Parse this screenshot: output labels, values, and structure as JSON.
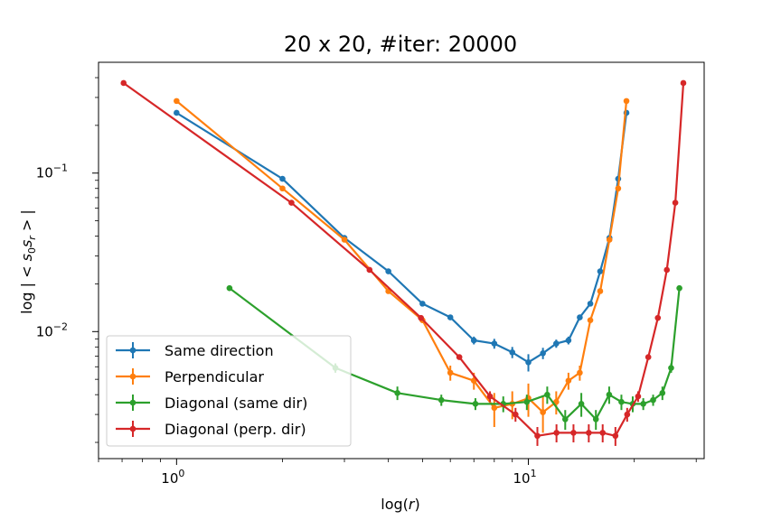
{
  "chart_data": {
    "type": "line",
    "title": "20 x 20, #iter: 20000",
    "xlabel": "log(r)",
    "ylabel": "log | < s0 sr > |",
    "xscale": "log",
    "yscale": "log",
    "xlim": [
      0.6,
      31.6
    ],
    "ylim": [
      0.00158,
      0.5
    ],
    "grid": false,
    "legend_position": "lower-left",
    "x_ticks": [
      {
        "value": 1,
        "label": "10",
        "exp": "0"
      },
      {
        "value": 10,
        "label": "10",
        "exp": "1"
      }
    ],
    "y_ticks": [
      {
        "value": 0.01,
        "label": "10",
        "exp": "−2"
      },
      {
        "value": 0.1,
        "label": "10",
        "exp": "−1"
      }
    ],
    "series": [
      {
        "name": "Same direction",
        "color": "#1f77b4",
        "x": [
          1,
          2,
          3,
          4,
          5,
          6,
          7,
          8,
          9,
          10,
          11,
          12,
          13,
          14,
          15,
          16,
          17,
          18,
          19
        ],
        "y": [
          0.24,
          0.092,
          0.039,
          0.024,
          0.015,
          0.0123,
          0.0088,
          0.0084,
          0.0074,
          0.0064,
          0.0073,
          0.0084,
          0.0088,
          0.0123,
          0.015,
          0.024,
          0.039,
          0.092,
          0.24
        ],
        "err": [
          0,
          0,
          0,
          0,
          0,
          0,
          0.0005,
          0.0006,
          0.0006,
          0.0008,
          0.0006,
          0.0005,
          0.0005,
          0,
          0,
          0,
          0,
          0,
          0
        ]
      },
      {
        "name": "Perpendicular",
        "color": "#ff7f0e",
        "x": [
          1,
          2,
          3,
          4,
          5,
          6,
          7,
          8,
          9,
          10,
          11,
          12,
          13,
          14,
          15,
          16,
          17,
          18,
          19
        ],
        "y": [
          0.285,
          0.08,
          0.038,
          0.018,
          0.0118,
          0.0055,
          0.0049,
          0.0033,
          0.0035,
          0.0038,
          0.0031,
          0.0036,
          0.0049,
          0.0055,
          0.0118,
          0.018,
          0.038,
          0.08,
          0.285
        ],
        "err": [
          0,
          0,
          0,
          0,
          0,
          0.0006,
          0.0006,
          0.0008,
          0.0007,
          0.0009,
          0.0008,
          0.0006,
          0.0006,
          0.0006,
          0,
          0,
          0,
          0,
          0
        ]
      },
      {
        "name": "Diagonal (same dir)",
        "color": "#2ca02c",
        "x": [
          1.414,
          2.828,
          4.243,
          5.657,
          7.071,
          8.485,
          9.899,
          11.314,
          12.728,
          14.142,
          15.556,
          16.971,
          18.385,
          19.799,
          21.213,
          22.627,
          24.042,
          25.456,
          26.87
        ],
        "y": [
          0.0188,
          0.0059,
          0.0041,
          0.0037,
          0.0035,
          0.0035,
          0.0036,
          0.004,
          0.0028,
          0.0035,
          0.0028,
          0.004,
          0.0036,
          0.0035,
          0.0035,
          0.0037,
          0.0041,
          0.0059,
          0.0188
        ],
        "err": [
          0,
          0.0004,
          0.0004,
          0.0003,
          0.0003,
          0.0004,
          0.0004,
          0.0005,
          0.0004,
          0.0006,
          0.0004,
          0.0005,
          0.0004,
          0.0004,
          0.0003,
          0.0003,
          0.0004,
          0.0004,
          0
        ]
      },
      {
        "name": "Diagonal (perp. dir)",
        "color": "#d62728",
        "x": [
          0.707,
          2.121,
          3.536,
          4.95,
          6.364,
          7.778,
          9.192,
          10.607,
          12.021,
          13.435,
          14.849,
          16.263,
          17.678,
          19.092,
          20.506,
          21.92,
          23.335,
          24.749,
          26.163,
          27.577
        ],
        "y": [
          0.37,
          0.065,
          0.0245,
          0.0122,
          0.0069,
          0.0039,
          0.003,
          0.0022,
          0.0023,
          0.0023,
          0.0023,
          0.0023,
          0.0022,
          0.003,
          0.0039,
          0.0069,
          0.0122,
          0.0245,
          0.065,
          0.37
        ],
        "err": [
          0,
          0,
          0,
          0,
          0,
          0.0003,
          0.0003,
          0.0003,
          0.0003,
          0.0003,
          0.0003,
          0.0003,
          0.0003,
          0.0003,
          0.0003,
          0,
          0,
          0,
          0,
          0
        ]
      }
    ]
  }
}
